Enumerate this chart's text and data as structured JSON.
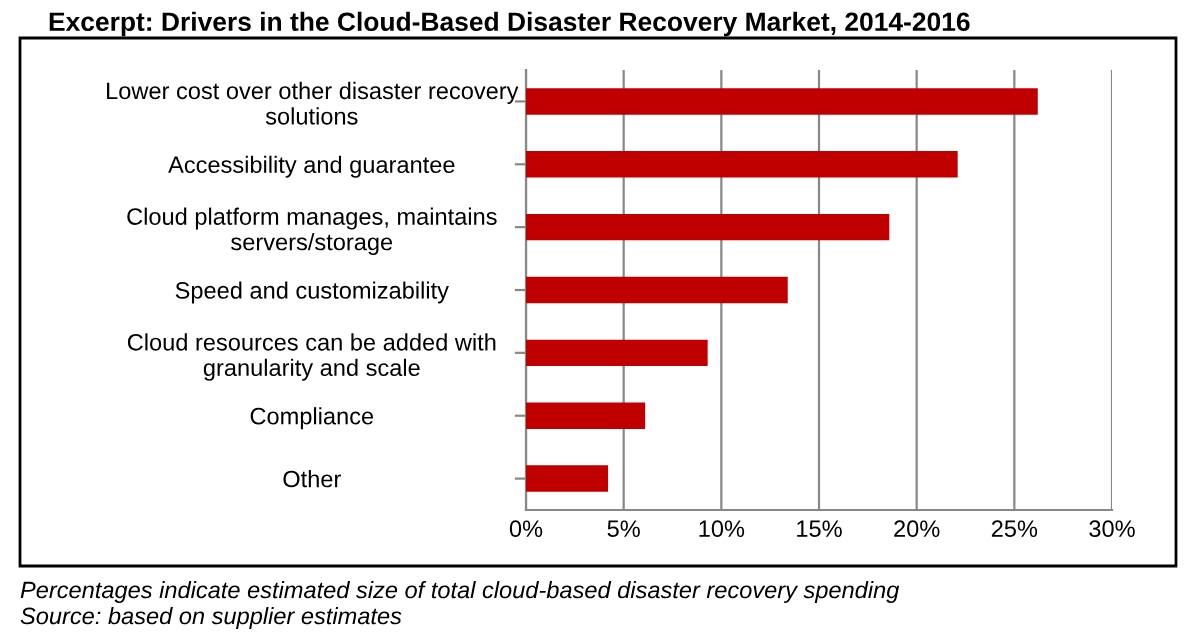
{
  "chart_data": {
    "type": "bar",
    "orientation": "horizontal",
    "title": "Excerpt: Drivers in the Cloud-Based Disaster Recovery Market, 2014-2016",
    "categories": [
      "Lower cost over other disaster recovery\nsolutions",
      "Accessibility and guarantee",
      "Cloud platform manages, maintains\nservers/storage",
      "Speed and customizability",
      "Cloud resources can be added with\ngranularity and scale",
      "Compliance",
      "Other"
    ],
    "values": [
      26.2,
      22.1,
      18.6,
      13.4,
      9.3,
      6.1,
      4.2
    ],
    "color": "#c00000",
    "xlim": [
      0,
      30
    ],
    "xticks": [
      {
        "value": 0,
        "label": "0%"
      },
      {
        "value": 5,
        "label": "5%"
      },
      {
        "value": 10,
        "label": "10%"
      },
      {
        "value": 15,
        "label": "15%"
      },
      {
        "value": 20,
        "label": "20%"
      },
      {
        "value": 25,
        "label": "25%"
      },
      {
        "value": 30,
        "label": "30%"
      }
    ],
    "grid": "x",
    "annotations": [
      "Percentages indicate estimated size of total cloud-based disaster recovery spending",
      "Source: based on supplier estimates"
    ]
  }
}
